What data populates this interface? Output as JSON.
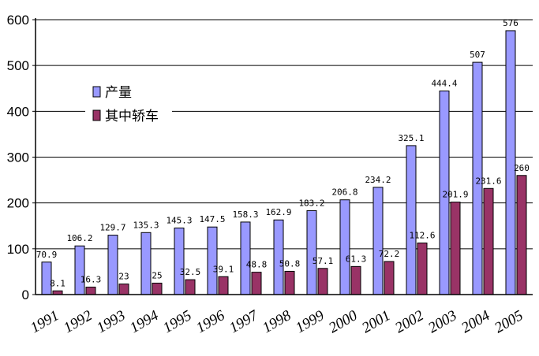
{
  "chart_data": {
    "type": "bar",
    "categories": [
      "1991",
      "1992",
      "1993",
      "1994",
      "1995",
      "1996",
      "1997",
      "1998",
      "1999",
      "2000",
      "2001",
      "2002",
      "2003",
      "2004",
      "2005"
    ],
    "series": [
      {
        "name": "产量",
        "color": "#9999ff",
        "values": [
          70.9,
          106.2,
          129.7,
          135.3,
          145.3,
          147.5,
          158.3,
          162.9,
          183.2,
          206.8,
          234.2,
          325.1,
          444.4,
          507,
          576
        ],
        "labels": [
          "70.9",
          "106.2",
          "129.7",
          "135.3",
          "145.3",
          "147.5",
          "158.3",
          "162.9",
          "183.2",
          "206.8",
          "234.2",
          "325.1",
          "444.4",
          "507",
          "576"
        ]
      },
      {
        "name": "其中轿车",
        "color": "#993366",
        "values": [
          8.1,
          16.3,
          23,
          25,
          32.5,
          39.1,
          48.8,
          50.8,
          57.1,
          61.3,
          72.2,
          112.6,
          201.9,
          231.6,
          260
        ],
        "labels": [
          "8.1",
          "16.3",
          "23",
          "25",
          "32.5",
          "39.1",
          "48.8",
          "50.8",
          "57.1",
          "61.3",
          "72.2",
          "112.6",
          "201.9",
          "231.6",
          "260"
        ]
      }
    ],
    "yticks": [
      "0",
      "100",
      "200",
      "300",
      "400",
      "500",
      "600"
    ],
    "ylim": [
      0,
      600
    ],
    "grid": "horizontal",
    "legend_position": "upper-left inside plot"
  }
}
